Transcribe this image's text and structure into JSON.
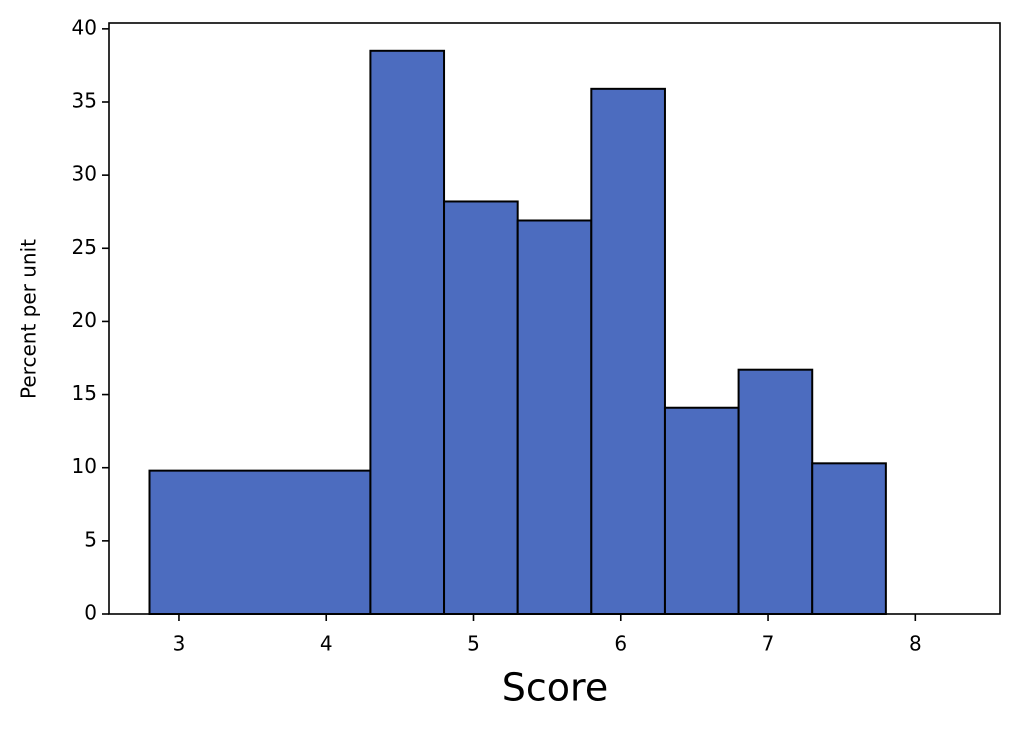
{
  "chart_data": {
    "type": "histogram",
    "x_label": "Score",
    "y_label": "Percent per unit",
    "bins": [
      2.8,
      4.3,
      4.8,
      5.3,
      5.8,
      6.3,
      6.8,
      7.3,
      7.8,
      8.3
    ],
    "values": [
      9.8,
      38.5,
      28.2,
      26.9,
      35.9,
      14.1,
      16.7,
      10.3,
      0
    ],
    "color": "#4c6cbf",
    "edge_color": "#000000",
    "xlim": [
      2.525,
      8.575
    ],
    "xticks": [
      3,
      4,
      5,
      6,
      7,
      8
    ],
    "ylim": [
      0,
      40.4
    ],
    "yticks": [
      0,
      5,
      10,
      15,
      20,
      25,
      30,
      35,
      40
    ]
  }
}
